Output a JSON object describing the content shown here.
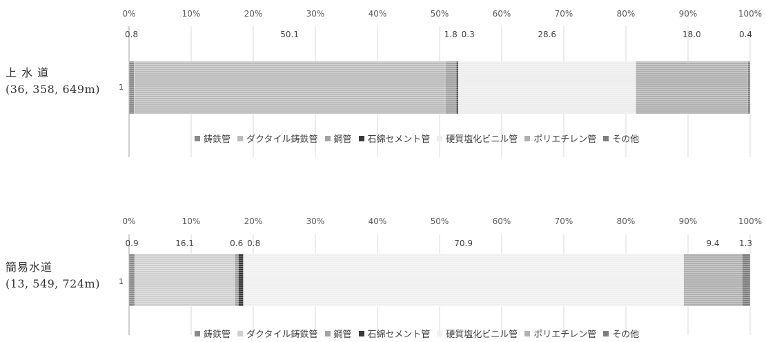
{
  "chart_data": [
    {
      "type": "bar",
      "orientation": "horizontal-stacked-100",
      "row_name": "上 水 道",
      "row_total": "(36, 358, 649m)",
      "category": "1",
      "x_ticks": [
        "0%",
        "10%",
        "20%",
        "30%",
        "40%",
        "50%",
        "60%",
        "70%",
        "80%",
        "90%",
        "100%"
      ],
      "xlim": [
        0,
        100
      ],
      "grid": true,
      "legend_position": "bottom",
      "series": [
        {
          "name": "鋳鉄管",
          "value": 0.8,
          "label": "0.8",
          "color": "#8a8a8a"
        },
        {
          "name": "ダクタイル鋳鉄管",
          "value": 50.1,
          "label": "50.1",
          "color": "#bcbcbc"
        },
        {
          "name": "鋼管",
          "value": 1.8,
          "label": "1.8",
          "color": "#a3a3a3"
        },
        {
          "name": "石綿セメント管",
          "value": 0.3,
          "label": "0.3",
          "color": "#3a3a3a"
        },
        {
          "name": "硬質塩化ビニル管",
          "value": 28.6,
          "label": "28.6",
          "color": "#ededed"
        },
        {
          "name": "ポリエチレン管",
          "value": 18.0,
          "label": "18.0",
          "color": "#b0b0b0"
        },
        {
          "name": "その他",
          "value": 0.4,
          "label": "0.4",
          "color": "#7e7e7e"
        }
      ]
    },
    {
      "type": "bar",
      "orientation": "horizontal-stacked-100",
      "row_name": "簡易水道",
      "row_total": "(13, 549, 724m)",
      "category": "1",
      "x_ticks": [
        "0%",
        "10%",
        "20%",
        "30%",
        "40%",
        "50%",
        "60%",
        "70%",
        "80%",
        "90%",
        "100%"
      ],
      "xlim": [
        0,
        100
      ],
      "grid": true,
      "legend_position": "bottom",
      "series": [
        {
          "name": "鋳鉄管",
          "value": 0.9,
          "label": "0.9",
          "color": "#8a8a8a"
        },
        {
          "name": "ダクタイル鋳鉄管",
          "value": 16.1,
          "label": "16.1",
          "color": "#cfcfcf"
        },
        {
          "name": "鋼管",
          "value": 0.6,
          "label": "0.6",
          "color": "#a3a3a3"
        },
        {
          "name": "石綿セメント管",
          "value": 0.8,
          "label": "0.8",
          "color": "#3a3a3a"
        },
        {
          "name": "硬質塩化ビニル管",
          "value": 70.9,
          "label": "70.9",
          "color": "#f0f0f0"
        },
        {
          "name": "ポリエチレン管",
          "value": 9.4,
          "label": "9.4",
          "color": "#b0b0b0"
        },
        {
          "name": "その他",
          "value": 1.3,
          "label": "1.3",
          "color": "#7e7e7e"
        }
      ]
    }
  ]
}
